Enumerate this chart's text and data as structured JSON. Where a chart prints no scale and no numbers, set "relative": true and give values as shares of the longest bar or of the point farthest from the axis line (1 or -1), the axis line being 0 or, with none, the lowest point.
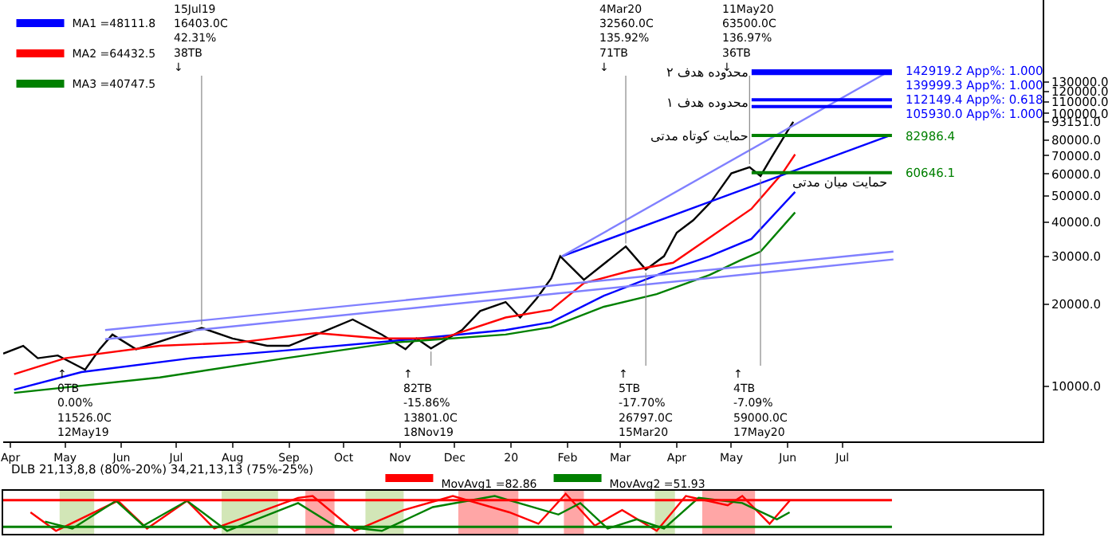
{
  "chart_data": [
    {
      "type": "line",
      "log": true,
      "legend": "top left",
      "x": [
        "2019-03-28",
        "2019-04-08",
        "2019-04-16",
        "2019-04-27",
        "2019-05-12",
        "2019-05-20",
        "2019-05-27",
        "2019-06-09",
        "2019-07-15",
        "2019-08-01",
        "2019-08-20",
        "2019-09-01",
        "2019-09-18",
        "2019-10-06",
        "2019-10-22",
        "2019-11-04",
        "2019-11-10",
        "2019-11-18",
        "2019-12-05",
        "2019-12-15",
        "2019-12-29",
        "2020-01-06",
        "2020-01-15",
        "2020-01-23",
        "2020-01-28",
        "2020-02-10",
        "2020-03-04",
        "2020-03-15",
        "2020-03-25",
        "2020-04-01",
        "2020-04-10",
        "2020-04-20",
        "2020-05-01",
        "2020-05-11",
        "2020-05-17",
        "2020-05-23",
        "2020-06-01",
        "2020-06-04"
      ],
      "xlim": [
        "2019-03-28",
        "2020-10-19"
      ],
      "xticks": [
        {
          "value": "2019-04-01",
          "label": "Apr"
        },
        {
          "value": "2019-05-01",
          "label": "May"
        },
        {
          "value": "2019-06-01",
          "label": "Jun"
        },
        {
          "value": "2019-07-01",
          "label": "Jul"
        },
        {
          "value": "2019-08-01",
          "label": "Aug"
        },
        {
          "value": "2019-09-01",
          "label": "Sep"
        },
        {
          "value": "2019-10-01",
          "label": "Oct"
        },
        {
          "value": "2019-11-01",
          "label": "Nov"
        },
        {
          "value": "2019-12-01",
          "label": "Dec"
        },
        {
          "value": "2020-01-01",
          "label": "20"
        },
        {
          "value": "2020-02-01",
          "label": "Feb"
        },
        {
          "value": "2020-03-01",
          "label": "Mar"
        },
        {
          "value": "2020-04-01",
          "label": "Apr"
        },
        {
          "value": "2020-05-01",
          "label": "May"
        },
        {
          "value": "2020-06-01",
          "label": "Jun"
        },
        {
          "value": "2020-07-01",
          "label": "Jul"
        }
      ],
      "ylim": [
        6300,
        260000
      ],
      "yticks": [
        {
          "value": 10000,
          "label": "10000.0"
        },
        {
          "value": 20000,
          "label": "20000.0"
        },
        {
          "value": 30000,
          "label": "30000.0"
        },
        {
          "value": 40000,
          "label": "40000.0"
        },
        {
          "value": 50000,
          "label": "50000.0"
        },
        {
          "value": 60000,
          "label": "60000.0"
        },
        {
          "value": 70000,
          "label": "70000.0"
        },
        {
          "value": 80000,
          "label": "80000.0"
        },
        {
          "value": 93151,
          "label": "93151.0"
        },
        {
          "value": 100000,
          "label": "100000.0"
        },
        {
          "value": 110000,
          "label": "110000.0"
        },
        {
          "value": 120000,
          "label": "120000.0"
        },
        {
          "value": 130000,
          "label": "130000.0"
        }
      ],
      "series": [
        {
          "color": "#000000",
          "values": [
            13200,
            14100,
            12700,
            13000,
            11526,
            13700,
            15500,
            13700,
            16403,
            15000,
            14100,
            14100,
            15700,
            17600,
            15500,
            13700,
            15000,
            13801,
            16100,
            18900,
            20400,
            17900,
            21000,
            24900,
            30000,
            24600,
            32560,
            26797,
            30000,
            36600,
            40600,
            47600,
            60300,
            63500,
            59000,
            69000,
            86500,
            93151
          ]
        },
        {
          "name": "MA1 =48111.8",
          "color": "#0000ff",
          "x": [
            "2019-04-03",
            "2019-05-10",
            "2019-07-09",
            "2019-08-30",
            "2019-10-29",
            "2019-12-29",
            "2020-01-23",
            "2020-02-21",
            "2020-03-30",
            "2020-04-19",
            "2020-05-12",
            "2020-06-05"
          ],
          "values": [
            9740,
            11300,
            12700,
            13560,
            14700,
            16100,
            17200,
            21500,
            27000,
            30000,
            34700,
            51600
          ]
        },
        {
          "name": "MA2 =64432.5",
          "color": "#ff0000",
          "x": [
            "2019-04-03",
            "2019-05-01",
            "2019-06-22",
            "2019-08-04",
            "2019-09-16",
            "2019-10-21",
            "2019-11-24",
            "2019-12-29",
            "2020-01-23",
            "2020-02-10",
            "2020-03-07",
            "2020-03-30",
            "2020-05-12",
            "2020-05-29",
            "2020-06-05"
          ],
          "values": [
            11100,
            12700,
            14100,
            14500,
            15700,
            15000,
            15000,
            17900,
            19100,
            23900,
            26600,
            28400,
            44700,
            60300,
            70800
          ]
        },
        {
          "name": "MA3 =40747.5",
          "color": "#008000",
          "x": [
            "2019-04-03",
            "2019-06-22",
            "2019-08-30",
            "2019-10-29",
            "2019-12-29",
            "2020-01-23",
            "2020-02-21",
            "2020-03-21",
            "2020-04-19",
            "2020-05-06",
            "2020-05-17",
            "2020-06-05"
          ],
          "values": [
            9480,
            10800,
            12700,
            14500,
            15500,
            16500,
            19600,
            21800,
            25600,
            29000,
            31200,
            43400
          ]
        },
        {
          "color": "#8080ff",
          "x": [
            "2019-05-23",
            "2020-07-29"
          ],
          "values": [
            14900,
            29200
          ]
        },
        {
          "color": "#8080ff",
          "x": [
            "2019-05-23",
            "2020-07-29"
          ],
          "values": [
            16100,
            31200
          ]
        },
        {
          "color": "#0000ff",
          "x": [
            "2020-01-29",
            "2020-07-27"
          ],
          "values": [
            30000,
            83000
          ]
        },
        {
          "color": "#8080ff",
          "x": [
            "2020-01-29",
            "2020-07-27"
          ],
          "values": [
            30000,
            143000
          ]
        }
      ],
      "ref_lines": [
        {
          "axis": "y",
          "value": 142919.2,
          "label": "142919.2 App%: 1.000",
          "color": "#0000ff"
        },
        {
          "axis": "y",
          "value": 139999.3,
          "label": "139999.3 App%: 1.000",
          "color": "#0000ff"
        },
        {
          "axis": "y",
          "value": 112149.4,
          "label": "112149.4 App%: 0.618",
          "color": "#0000ff"
        },
        {
          "axis": "y",
          "value": 105930.0,
          "label": "105930.0 App%: 1.000",
          "color": "#0000ff"
        },
        {
          "axis": "y",
          "value": 82986.4,
          "label": "82986.4",
          "color": "#008000"
        },
        {
          "axis": "y",
          "value": 60646.1,
          "label": "60646.1",
          "color": "#008000"
        }
      ],
      "annotations": [
        {
          "text": "15Jul19\n16403.0C\n42.31%\n38TB\n↓",
          "x": "2019-07-15",
          "y": 16403
        },
        {
          "text": "4Mar20\n32560.0C\n135.92%\n71TB\n↓",
          "x": "2020-03-04",
          "y": 32560
        },
        {
          "text": "11May20\n63500.0C\n136.97%\n36TB\n↓",
          "x": "2020-05-11",
          "y": 63500
        },
        {
          "text": "↑\n0TB\n0.00%\n11526.0C\n12May19",
          "x": "2019-05-12",
          "y": 11526
        },
        {
          "text": "↑\n82TB\n-15.86%\n13801.0C\n18Nov19",
          "x": "2019-11-18",
          "y": 13801
        },
        {
          "text": "↑\n5TB\n-17.70%\n26797.0C\n15Mar20",
          "x": "2020-03-15",
          "y": 26797
        },
        {
          "text": "↑\n4TB\n-7.09%\n59000.0C\n17May20",
          "x": "2020-05-17",
          "y": 59000
        },
        {
          "text": "محدوده هدف ۲",
          "x": "2020-05-12",
          "y": 141000
        },
        {
          "text": "محدوده هدف ۱",
          "x": "2020-05-12",
          "y": 109000
        },
        {
          "text": "حمایت کوتاه مدتی",
          "x": "2020-05-12",
          "y": 82986.4
        },
        {
          "text": "حمایت میان مدتی",
          "x": "2020-07-28",
          "y": 60646.1
        }
      ]
    },
    {
      "type": "line",
      "relative": true,
      "legend": "top",
      "title": "DLB 21,13,8,8 (80%-20%) 34,21,13,13 (75%-25%)",
      "xlim": [
        "2019-03-28",
        "2020-10-19"
      ],
      "series": [
        {
          "name": "MovAvg1 =82.86",
          "color": "#ff0000",
          "x": [
            "2019-04-12",
            "2019-04-26",
            "2019-05-30",
            "2019-06-15",
            "2019-07-07",
            "2019-07-22",
            "2019-09-06",
            "2019-09-14",
            "2019-10-07",
            "2019-11-03",
            "2019-11-30",
            "2019-12-31",
            "2020-01-16",
            "2020-01-31",
            "2020-02-16",
            "2020-03-02",
            "2020-03-21",
            "2020-04-06",
            "2020-04-29",
            "2020-05-07",
            "2020-05-22",
            "2020-06-02"
          ],
          "values": [
            0.5,
            0,
            0.81,
            0.06,
            0.81,
            0.06,
            0.89,
            0.94,
            0,
            0.56,
            0.94,
            0.5,
            0.19,
            1,
            0.14,
            0.56,
            0,
            0.94,
            0.69,
            0.94,
            0.19,
            0.81
          ]
        },
        {
          "name": "MovAvg2 =51.93",
          "color": "#008000",
          "x": [
            "2019-04-20",
            "2019-05-05",
            "2019-05-29",
            "2019-06-13",
            "2019-07-07",
            "2019-07-29",
            "2019-09-06",
            "2019-09-26",
            "2019-10-22",
            "2019-11-19",
            "2019-12-23",
            "2020-01-27",
            "2020-02-08",
            "2020-02-23",
            "2020-03-10",
            "2020-03-25",
            "2020-04-13",
            "2020-05-07",
            "2020-05-26",
            "2020-06-02"
          ],
          "values": [
            0.25,
            0.06,
            0.81,
            0.14,
            0.81,
            0,
            0.75,
            0.14,
            0,
            0.64,
            0.94,
            0.44,
            0.75,
            0.06,
            0.31,
            0.06,
            0.89,
            0.75,
            0.31,
            0.5
          ]
        }
      ],
      "ref_lines": [
        {
          "axis": "y",
          "value": 0.83,
          "color": "#ff0000"
        },
        {
          "axis": "y",
          "value": 0.11,
          "color": "#008000"
        }
      ],
      "bands": [
        {
          "axis": "x",
          "from": "2019-09-10",
          "to": "2019-09-26",
          "color": "#ff0000"
        },
        {
          "axis": "x",
          "from": "2019-12-03",
          "to": "2020-01-05",
          "color": "#ff0000"
        },
        {
          "axis": "x",
          "from": "2020-01-30",
          "to": "2020-02-10",
          "color": "#ff0000"
        },
        {
          "axis": "x",
          "from": "2020-04-15",
          "to": "2020-05-14",
          "color": "#ff0000"
        },
        {
          "axis": "x",
          "from": "2019-04-28",
          "to": "2019-05-17",
          "color": "#7fb832"
        },
        {
          "axis": "x",
          "from": "2019-07-26",
          "to": "2019-08-26",
          "color": "#7fb832"
        },
        {
          "axis": "x",
          "from": "2019-10-13",
          "to": "2019-11-03",
          "color": "#7fb832"
        },
        {
          "axis": "x",
          "from": "2020-03-20",
          "to": "2020-03-31",
          "color": "#7fb832"
        }
      ]
    }
  ]
}
